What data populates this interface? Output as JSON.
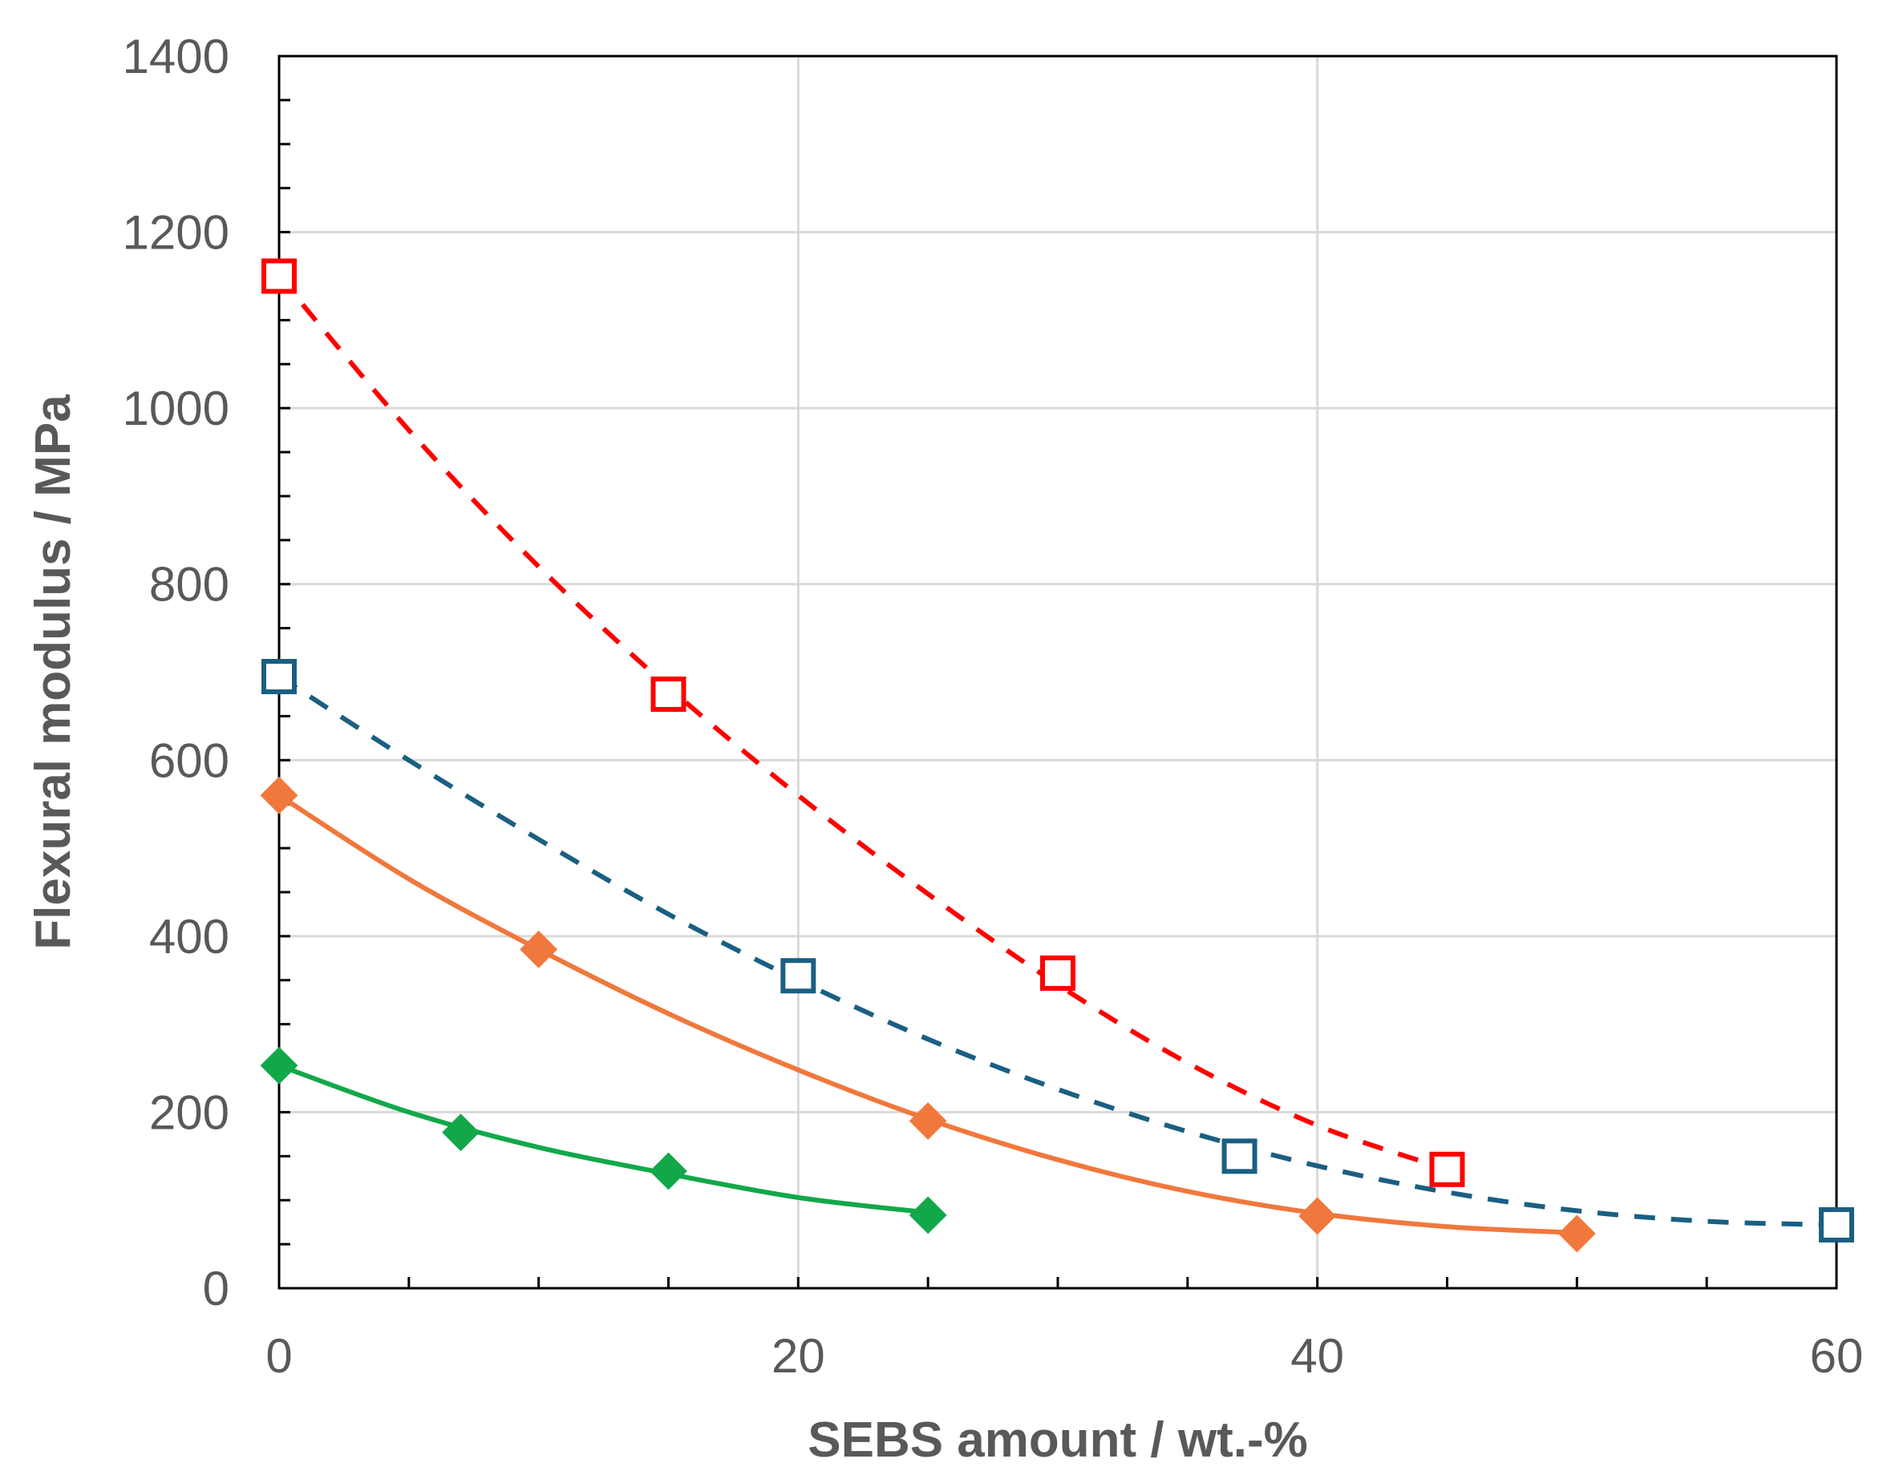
{
  "chart_data": {
    "type": "line",
    "title": "",
    "xlabel": "SEBS amount / wt.-%",
    "ylabel": "Flexural modulus / MPa",
    "xlim": [
      0,
      60
    ],
    "ylim": [
      0,
      1400
    ],
    "x_ticks": [
      0,
      20,
      40,
      60
    ],
    "y_ticks": [
      0,
      200,
      400,
      600,
      800,
      1000,
      1200,
      1400
    ],
    "x_minor_step": 5,
    "y_minor_step": 50,
    "grid": true,
    "legend": "none",
    "series": [
      {
        "color": "#ff0000",
        "line_style": "dashed",
        "marker": "open-square",
        "points": [
          [
            0,
            1150
          ],
          [
            15,
            675
          ],
          [
            30,
            358
          ],
          [
            45,
            135
          ]
        ],
        "fit": [
          [
            0,
            1150
          ],
          [
            5,
            975
          ],
          [
            10,
            820
          ],
          [
            15,
            683
          ],
          [
            20,
            560
          ],
          [
            25,
            448
          ],
          [
            30,
            345
          ],
          [
            35,
            256
          ],
          [
            40,
            185
          ],
          [
            45,
            135
          ]
        ]
      },
      {
        "color": "#1a5f82",
        "line_style": "dashed",
        "marker": "open-square",
        "points": [
          [
            0,
            695
          ],
          [
            20,
            355
          ],
          [
            37,
            150
          ],
          [
            60,
            72
          ]
        ],
        "fit": [
          [
            0,
            695
          ],
          [
            5,
            600
          ],
          [
            10,
            510
          ],
          [
            15,
            425
          ],
          [
            20,
            350
          ],
          [
            25,
            283
          ],
          [
            30,
            226
          ],
          [
            35,
            178
          ],
          [
            40,
            139
          ],
          [
            45,
            109
          ],
          [
            50,
            88
          ],
          [
            55,
            76
          ],
          [
            60,
            72
          ]
        ]
      },
      {
        "color": "#f0783c",
        "line_style": "solid",
        "marker": "filled-diamond",
        "points": [
          [
            0,
            560
          ],
          [
            10,
            385
          ],
          [
            25,
            190
          ],
          [
            40,
            82
          ],
          [
            50,
            62
          ]
        ],
        "fit": [
          [
            0,
            560
          ],
          [
            5,
            465
          ],
          [
            10,
            385
          ],
          [
            15,
            312
          ],
          [
            20,
            248
          ],
          [
            25,
            192
          ],
          [
            30,
            146
          ],
          [
            35,
            110
          ],
          [
            40,
            85
          ],
          [
            45,
            70
          ],
          [
            50,
            63
          ]
        ]
      },
      {
        "color": "#12a84a",
        "line_style": "solid",
        "marker": "filled-diamond",
        "points": [
          [
            0,
            253
          ],
          [
            7,
            177
          ],
          [
            15,
            133
          ],
          [
            25,
            83
          ]
        ],
        "fit": [
          [
            0,
            253
          ],
          [
            5,
            200
          ],
          [
            10,
            160
          ],
          [
            15,
            130
          ],
          [
            20,
            103
          ],
          [
            25,
            86
          ]
        ]
      }
    ]
  }
}
